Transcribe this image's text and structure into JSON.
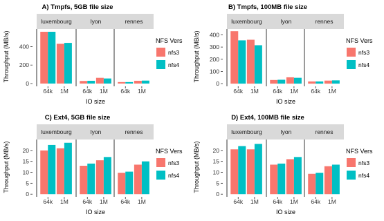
{
  "chart_data": [
    {
      "type": "bar",
      "title": "A) Tmpfs, 5GB file size",
      "xlabel": "IO size",
      "ylabel": "Throughput (MB/s)",
      "facets": [
        "luxembourg",
        "lyon",
        "rennes"
      ],
      "categories": [
        "64k",
        "1M"
      ],
      "legend_title": "NFS Vers",
      "legend_position": "right",
      "yticks": [
        0,
        200,
        400
      ],
      "ylim": [
        -30,
        590
      ],
      "series": [
        {
          "name": "nfs3",
          "color": "#F8766D",
          "values": [
            [
              560,
              430
            ],
            [
              28,
              62
            ],
            [
              16,
              30
            ]
          ]
        },
        {
          "name": "nfs4",
          "color": "#00BFC4",
          "values": [
            [
              560,
              440
            ],
            [
              30,
              55
            ],
            [
              16,
              32
            ]
          ]
        }
      ]
    },
    {
      "type": "bar",
      "title": "B) Tmpfs, 100MB file size",
      "xlabel": "IO size",
      "ylabel": "Throughput (MB/s)",
      "facets": [
        "luxembourg",
        "lyon",
        "rennes"
      ],
      "categories": [
        "64k",
        "1M"
      ],
      "legend_title": "NFS Vers",
      "legend_position": "right",
      "yticks": [
        0,
        100,
        200,
        300,
        400
      ],
      "ylim": [
        -22,
        448
      ],
      "series": [
        {
          "name": "nfs3",
          "color": "#F8766D",
          "values": [
            [
              430,
              360
            ],
            [
              30,
              52
            ],
            [
              18,
              25
            ]
          ]
        },
        {
          "name": "nfs4",
          "color": "#00BFC4",
          "values": [
            [
              355,
              315
            ],
            [
              32,
              48
            ],
            [
              18,
              27
            ]
          ]
        }
      ]
    },
    {
      "type": "bar",
      "title": "C) Ext4, 5GB file size",
      "xlabel": "IO size",
      "ylabel": "Throughput (MB/s)",
      "facets": [
        "luxembourg",
        "lyon",
        "rennes"
      ],
      "categories": [
        "64k",
        "1M"
      ],
      "legend_title": "NFS Vers",
      "legend_position": "right",
      "yticks": [
        0,
        5,
        10,
        15,
        20
      ],
      "ylim": [
        -1.2,
        25
      ],
      "series": [
        {
          "name": "nfs3",
          "color": "#F8766D",
          "values": [
            [
              20,
              21
            ],
            [
              13,
              15.5
            ],
            [
              9.8,
              13.5
            ]
          ]
        },
        {
          "name": "nfs4",
          "color": "#00BFC4",
          "values": [
            [
              22.5,
              23.5
            ],
            [
              14,
              17
            ],
            [
              10.3,
              15
            ]
          ]
        }
      ]
    },
    {
      "type": "bar",
      "title": "D) Ext4, 100MB file size",
      "xlabel": "IO size",
      "ylabel": "Throughput (MB/s)",
      "facets": [
        "luxembourg",
        "lyon",
        "rennes"
      ],
      "categories": [
        "64k",
        "1M"
      ],
      "legend_title": "NFS Vers",
      "legend_position": "right",
      "yticks": [
        0,
        5,
        10,
        15,
        20
      ],
      "ylim": [
        -1.2,
        25
      ],
      "series": [
        {
          "name": "nfs3",
          "color": "#F8766D",
          "values": [
            [
              20.5,
              20.5
            ],
            [
              13.5,
              16
            ],
            [
              9.3,
              12.8
            ]
          ]
        },
        {
          "name": "nfs4",
          "color": "#00BFC4",
          "values": [
            [
              22,
              23
            ],
            [
              14,
              17
            ],
            [
              9.8,
              13.5
            ]
          ]
        }
      ]
    }
  ]
}
